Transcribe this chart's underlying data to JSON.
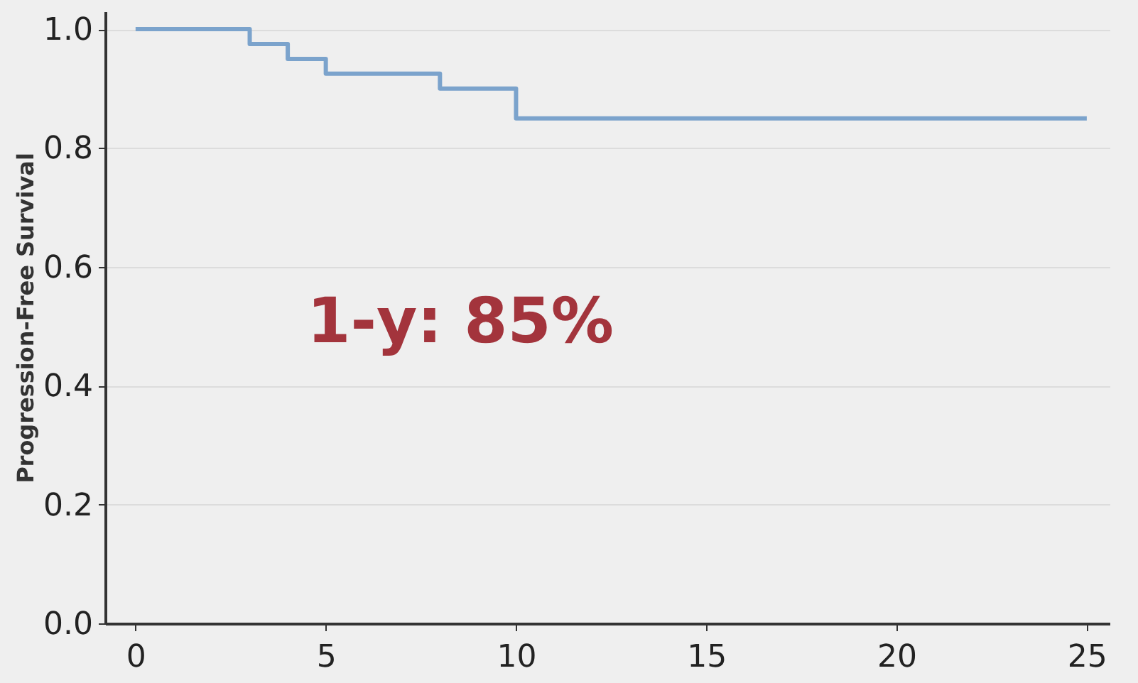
{
  "chart_data": {
    "type": "step",
    "ylabel": "Progression-Free Survival",
    "x": [
      0,
      3,
      4,
      5,
      8,
      10,
      25
    ],
    "series": [
      {
        "color": "#7ba3cc",
        "values": [
          1.0,
          0.975,
          0.95,
          0.925,
          0.9,
          0.85,
          0.85
        ]
      }
    ],
    "xlim": [
      -0.8,
      25.6
    ],
    "xticks": [
      0,
      5,
      10,
      15,
      20,
      25
    ],
    "ylim": [
      0,
      1.03
    ],
    "yticks": [
      {
        "value": 0,
        "label": "0.0"
      },
      0.2,
      0.4,
      0.6,
      0.8,
      {
        "value": 1,
        "label": "1.0"
      }
    ],
    "grid": "y",
    "annotations": [
      "1-y: 85%"
    ],
    "marker": "none"
  }
}
